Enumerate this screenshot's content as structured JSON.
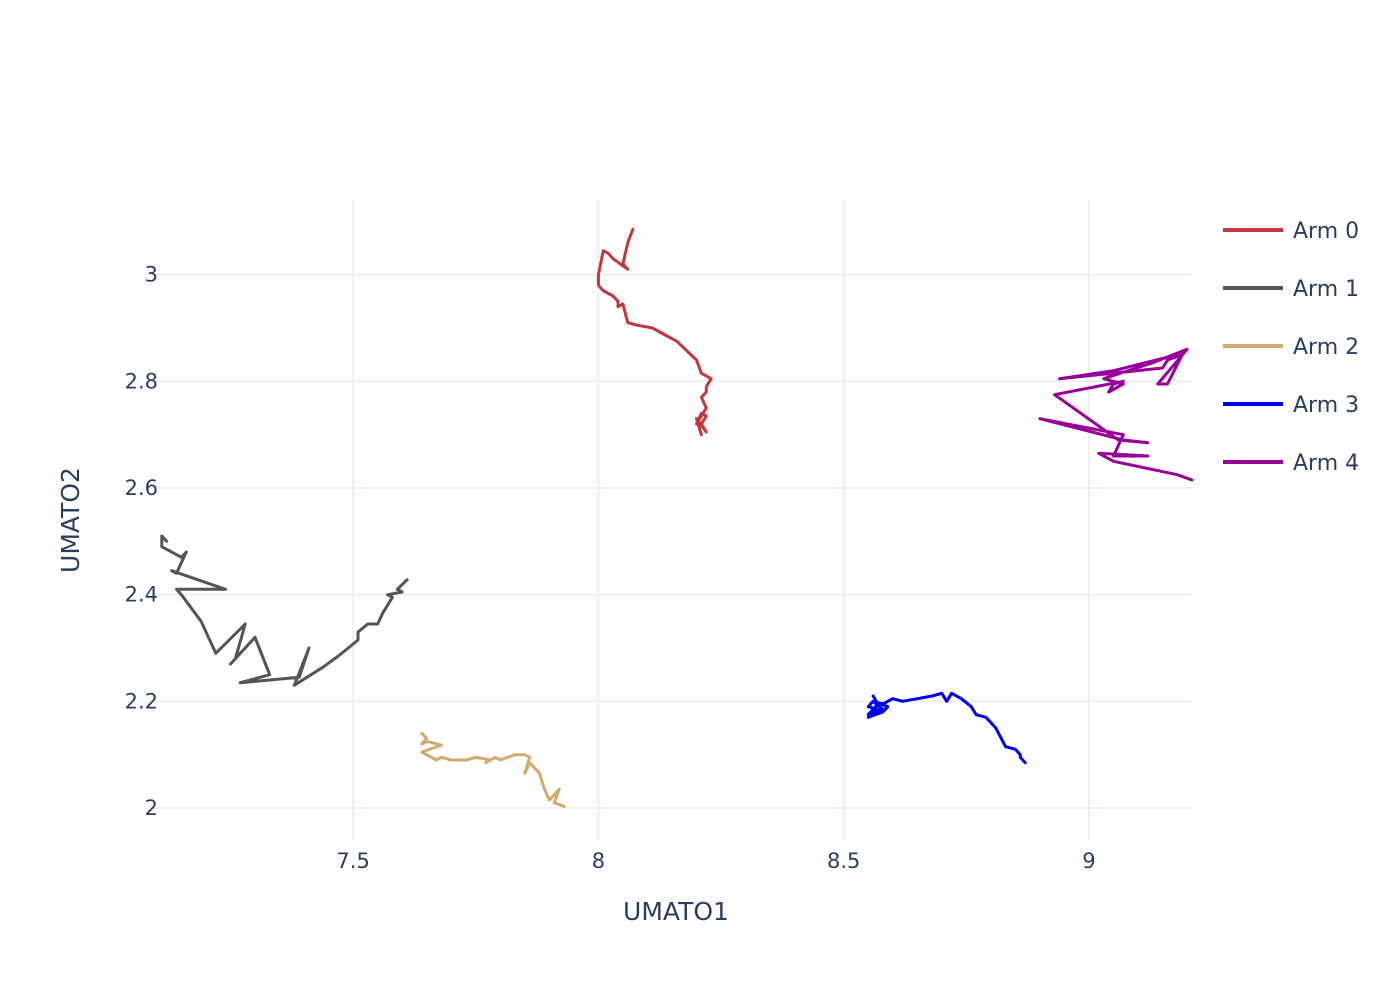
{
  "chart_data": {
    "type": "line",
    "title": "",
    "xlabel": "UMATO1",
    "ylabel": "UMATO2",
    "xlim": [
      7.09,
      9.21
    ],
    "ylim": [
      1.94,
      3.14
    ],
    "xticks": [
      7.5,
      8,
      8.5,
      9
    ],
    "xtick_labels": [
      "7.5",
      "8",
      "8.5",
      "9"
    ],
    "yticks": [
      2,
      2.2,
      2.4,
      2.6,
      2.8,
      3
    ],
    "ytick_labels": [
      "2",
      "2.2",
      "2.4",
      "2.6",
      "2.8",
      "3"
    ],
    "grid": true,
    "legend_position": "right",
    "series": [
      {
        "name": "Arm 0",
        "color": "#c0393e",
        "x": [
          8.07,
          8.06,
          8.05,
          8.06,
          8.03,
          8.02,
          8.01,
          8.0,
          8.0,
          8.01,
          8.03,
          8.04,
          8.04,
          8.05,
          8.06,
          8.08,
          8.11,
          8.14,
          8.13,
          8.16,
          8.2,
          8.21,
          8.23,
          8.22,
          8.22,
          8.21,
          8.22,
          8.2,
          8.21,
          8.22,
          8.21,
          8.22,
          8.2,
          8.21
        ],
        "y": [
          3.085,
          3.06,
          3.02,
          3.01,
          3.03,
          3.04,
          3.045,
          3.0,
          2.98,
          2.97,
          2.96,
          2.95,
          2.94,
          2.945,
          2.91,
          2.905,
          2.9,
          2.885,
          2.89,
          2.875,
          2.84,
          2.815,
          2.805,
          2.79,
          2.78,
          2.77,
          2.75,
          2.72,
          2.74,
          2.735,
          2.72,
          2.705,
          2.73,
          2.7
        ]
      },
      {
        "name": "Arm 1",
        "color": "#555555",
        "x": [
          7.61,
          7.59,
          7.6,
          7.57,
          7.58,
          7.56,
          7.55,
          7.53,
          7.51,
          7.51,
          7.47,
          7.44,
          7.38,
          7.41,
          7.39,
          7.33,
          7.27,
          7.33,
          7.3,
          7.25,
          7.26,
          7.28,
          7.22,
          7.19,
          7.15,
          7.14,
          7.24,
          7.13,
          7.14,
          7.16,
          7.15,
          7.11,
          7.11,
          7.12
        ],
        "y": [
          2.428,
          2.41,
          2.405,
          2.4,
          2.395,
          2.365,
          2.345,
          2.345,
          2.33,
          2.315,
          2.285,
          2.265,
          2.23,
          2.3,
          2.245,
          2.24,
          2.235,
          2.25,
          2.32,
          2.27,
          2.28,
          2.345,
          2.29,
          2.35,
          2.4,
          2.41,
          2.41,
          2.445,
          2.44,
          2.48,
          2.47,
          2.49,
          2.51,
          2.5
        ]
      },
      {
        "name": "Arm 2",
        "color": "#d2aa6d",
        "x": [
          7.93,
          7.91,
          7.92,
          7.9,
          7.89,
          7.88,
          7.86,
          7.85,
          7.86,
          7.85,
          7.83,
          7.8,
          7.79,
          7.77,
          7.78,
          7.75,
          7.73,
          7.7,
          7.68,
          7.67,
          7.65,
          7.64,
          7.68,
          7.65,
          7.64,
          7.65,
          7.64
        ],
        "y": [
          2.003,
          2.01,
          2.035,
          2.015,
          2.035,
          2.065,
          2.085,
          2.065,
          2.095,
          2.1,
          2.1,
          2.09,
          2.095,
          2.085,
          2.09,
          2.095,
          2.09,
          2.09,
          2.095,
          2.09,
          2.1,
          2.105,
          2.118,
          2.125,
          2.12,
          2.13,
          2.14
        ]
      },
      {
        "name": "Arm 3",
        "color": "#0000ee",
        "x": [
          8.87,
          8.86,
          8.86,
          8.85,
          8.83,
          8.81,
          8.79,
          8.77,
          8.76,
          8.74,
          8.72,
          8.71,
          8.7,
          8.68,
          8.65,
          8.62,
          8.6,
          8.58,
          8.56,
          8.59,
          8.58,
          8.55,
          8.57,
          8.55,
          8.56,
          8.58,
          8.55,
          8.57,
          8.56
        ],
        "y": [
          2.085,
          2.095,
          2.1,
          2.11,
          2.115,
          2.15,
          2.17,
          2.175,
          2.19,
          2.205,
          2.215,
          2.2,
          2.215,
          2.21,
          2.205,
          2.2,
          2.205,
          2.195,
          2.2,
          2.19,
          2.18,
          2.17,
          2.185,
          2.19,
          2.2,
          2.185,
          2.175,
          2.195,
          2.21
        ]
      },
      {
        "name": "Arm 4",
        "color": "#990099",
        "x": [
          9.21,
          9.18,
          9.05,
          9.02,
          9.12,
          9.05,
          9.07,
          8.9,
          9.07,
          9.12,
          9.06,
          8.93,
          9.07,
          9.05,
          9.04,
          9.07,
          9.03,
          9.13,
          9.2,
          9.14,
          9.16,
          9.19,
          9.16,
          9.15,
          8.94,
          9.05,
          9.18
        ],
        "y": [
          2.615,
          2.625,
          2.65,
          2.665,
          2.66,
          2.66,
          2.7,
          2.73,
          2.69,
          2.685,
          2.69,
          2.775,
          2.8,
          2.795,
          2.78,
          2.795,
          2.805,
          2.835,
          2.86,
          2.795,
          2.795,
          2.85,
          2.84,
          2.825,
          2.805,
          2.82,
          2.85
        ]
      }
    ]
  }
}
